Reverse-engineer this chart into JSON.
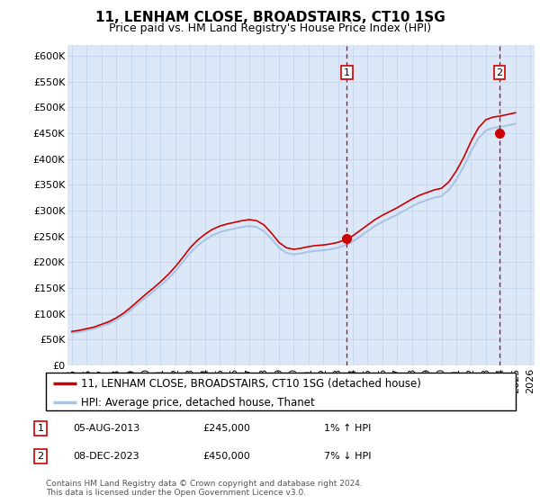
{
  "title": "11, LENHAM CLOSE, BROADSTAIRS, CT10 1SG",
  "subtitle": "Price paid vs. HM Land Registry's House Price Index (HPI)",
  "ylim": [
    0,
    620000
  ],
  "yticks": [
    0,
    50000,
    100000,
    150000,
    200000,
    250000,
    300000,
    350000,
    400000,
    450000,
    500000,
    550000,
    600000
  ],
  "ytick_labels": [
    "£0",
    "£50K",
    "£100K",
    "£150K",
    "£200K",
    "£250K",
    "£300K",
    "£350K",
    "£400K",
    "£450K",
    "£500K",
    "£550K",
    "£600K"
  ],
  "xlim": [
    1994.7,
    2026.3
  ],
  "xtick_years": [
    1995,
    1996,
    1997,
    1998,
    1999,
    2000,
    2001,
    2002,
    2003,
    2004,
    2005,
    2006,
    2007,
    2008,
    2009,
    2010,
    2011,
    2012,
    2013,
    2014,
    2015,
    2016,
    2017,
    2018,
    2019,
    2020,
    2021,
    2022,
    2023,
    2024,
    2025,
    2026
  ],
  "hpi_years": [
    1995.0,
    1995.5,
    1996.0,
    1996.5,
    1997.0,
    1997.5,
    1998.0,
    1998.5,
    1999.0,
    1999.5,
    2000.0,
    2000.5,
    2001.0,
    2001.5,
    2002.0,
    2002.5,
    2003.0,
    2003.5,
    2004.0,
    2004.5,
    2005.0,
    2005.5,
    2006.0,
    2006.5,
    2007.0,
    2007.5,
    2008.0,
    2008.5,
    2009.0,
    2009.5,
    2010.0,
    2010.5,
    2011.0,
    2011.5,
    2012.0,
    2012.5,
    2013.0,
    2013.5,
    2014.0,
    2014.5,
    2015.0,
    2015.5,
    2016.0,
    2016.5,
    2017.0,
    2017.5,
    2018.0,
    2018.5,
    2019.0,
    2019.5,
    2020.0,
    2020.5,
    2021.0,
    2021.5,
    2022.0,
    2022.5,
    2023.0,
    2023.5,
    2024.0,
    2024.5,
    2025.0
  ],
  "hpi_values": [
    63000,
    65000,
    68000,
    71000,
    76000,
    81000,
    88000,
    97000,
    108000,
    120000,
    132000,
    143000,
    155000,
    168000,
    183000,
    200000,
    218000,
    232000,
    243000,
    252000,
    258000,
    262000,
    265000,
    268000,
    270000,
    268000,
    260000,
    245000,
    228000,
    218000,
    215000,
    217000,
    220000,
    222000,
    223000,
    225000,
    228000,
    233000,
    240000,
    250000,
    260000,
    270000,
    278000,
    285000,
    292000,
    300000,
    308000,
    315000,
    320000,
    325000,
    328000,
    340000,
    360000,
    385000,
    415000,
    440000,
    455000,
    460000,
    462000,
    465000,
    468000
  ],
  "sale1_year": 2013.59,
  "sale1_value": 245000,
  "sale2_year": 2023.92,
  "sale2_value": 450000,
  "sale1_label": "1",
  "sale1_date": "05-AUG-2013",
  "sale1_price": "£245,000",
  "sale1_hpi_change": "1% ↑ HPI",
  "sale2_label": "2",
  "sale2_date": "08-DEC-2023",
  "sale2_price": "£450,000",
  "sale2_hpi_change": "7% ↓ HPI",
  "hpi_line_color": "#aac4e4",
  "price_line_color": "#cc0000",
  "dashed_line_color": "#cc0000",
  "marker_color": "#cc0000",
  "grid_color": "#c8d8ec",
  "plot_bg_color": "#dce8f8",
  "legend_line1": "11, LENHAM CLOSE, BROADSTAIRS, CT10 1SG (detached house)",
  "legend_line2": "HPI: Average price, detached house, Thanet",
  "footnote1": "Contains HM Land Registry data © Crown copyright and database right 2024.",
  "footnote2": "This data is licensed under the Open Government Licence v3.0.",
  "title_fontsize": 11,
  "subtitle_fontsize": 9,
  "tick_fontsize": 8,
  "legend_fontsize": 8.5
}
